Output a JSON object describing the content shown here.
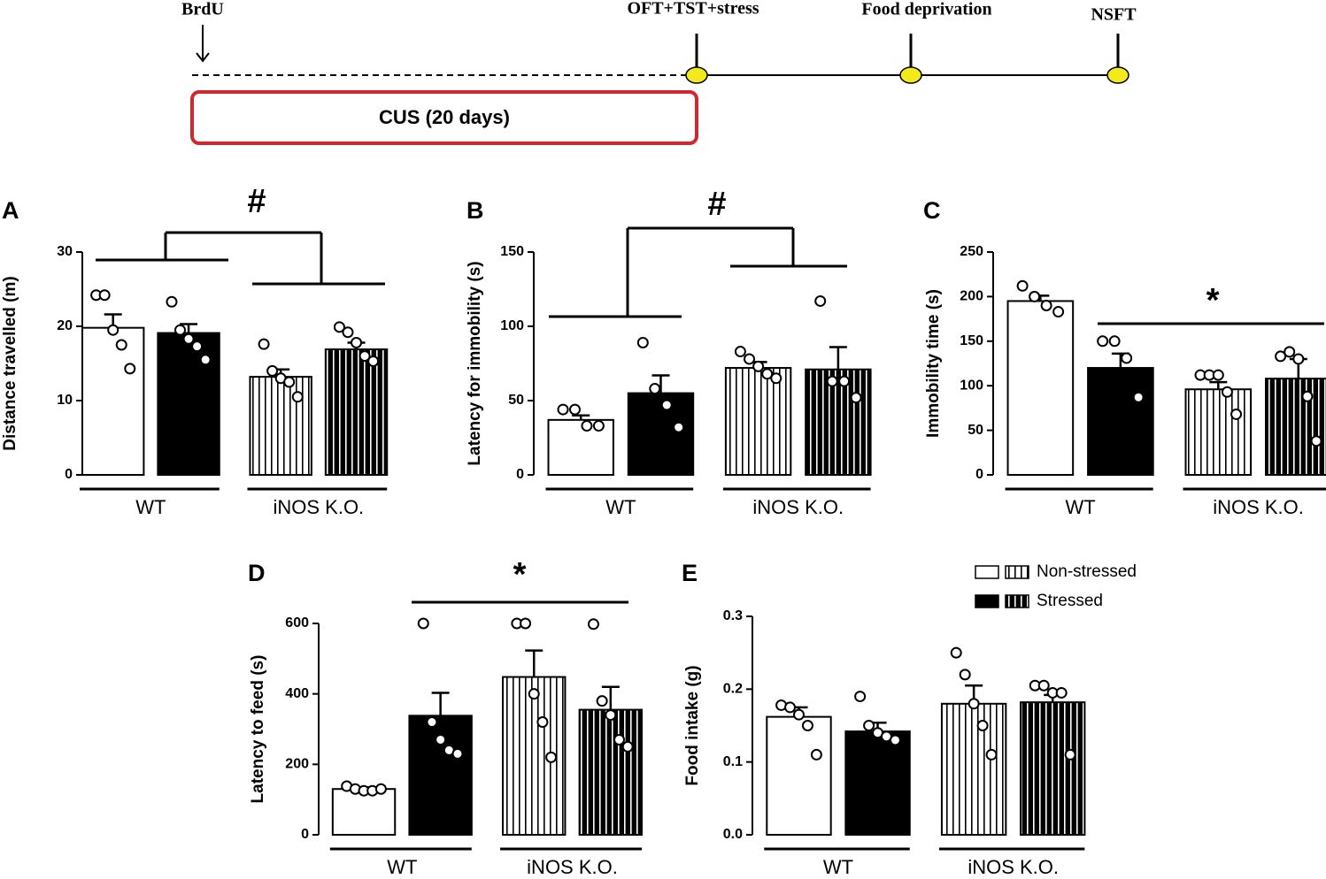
{
  "timeline": {
    "labels": [
      "BrdU",
      "OFT+TST+stress",
      "Food deprivation",
      "NSFT"
    ],
    "period": "CUS (20 days)"
  },
  "chart_data": [
    {
      "type": "bar",
      "panel": "A",
      "ylabel": "Distance travelled (m)",
      "categories": [
        "WT",
        "iNOS K.O."
      ],
      "patterns": [
        "solid",
        "striped"
      ],
      "ylim": [
        0,
        30
      ],
      "yticks": [
        0,
        10,
        20,
        30
      ],
      "annotation": "#",
      "series": [
        {
          "color": "#ffffff",
          "values": [
            19.8,
            13.2
          ],
          "errors": [
            1.8,
            1.0
          ],
          "points": [
            [
              24.2,
              24.2,
              19.5,
              17.5,
              14.3
            ],
            [
              17.6,
              14.0,
              13.0,
              12.5,
              10.5
            ]
          ]
        },
        {
          "color": "#000000",
          "values": [
            19.1,
            16.9
          ],
          "errors": [
            1.2,
            0.9
          ],
          "points": [
            [
              23.3,
              19.5,
              18.3,
              17.3,
              15.5
            ],
            [
              19.9,
              19.2,
              17.8,
              16.0,
              15.3
            ]
          ]
        }
      ]
    },
    {
      "type": "bar",
      "panel": "B",
      "ylabel": "Latency for  immobility (s)",
      "categories": [
        "WT",
        "iNOS K.O."
      ],
      "patterns": [
        "solid",
        "striped"
      ],
      "ylim": [
        0,
        150
      ],
      "yticks": [
        0,
        50,
        100,
        150
      ],
      "annotation": "#",
      "series": [
        {
          "color": "#ffffff",
          "values": [
            37,
            72
          ],
          "errors": [
            3,
            4
          ],
          "points": [
            [
              44,
              44,
              33,
              33
            ],
            [
              83,
              78,
              73,
              68,
              65
            ]
          ]
        },
        {
          "color": "#000000",
          "values": [
            55,
            71
          ],
          "errors": [
            12,
            15
          ],
          "points": [
            [
              89,
              58,
              47,
              32
            ],
            [
              117,
              63,
              63,
              52
            ]
          ]
        }
      ]
    },
    {
      "type": "bar",
      "panel": "C",
      "ylabel": "Immobility time (s)",
      "categories": [
        "WT",
        "iNOS K.O."
      ],
      "patterns": [
        "solid",
        "striped"
      ],
      "ylim": [
        0,
        250
      ],
      "yticks": [
        0,
        50,
        100,
        150,
        200,
        250
      ],
      "annotation": "*",
      "series": [
        {
          "color": "#ffffff",
          "values": [
            195,
            96
          ],
          "errors": [
            6,
            8
          ],
          "points": [
            [
              212,
              200,
              190,
              183
            ],
            [
              112,
              112,
              112,
              93,
              68
            ]
          ]
        },
        {
          "color": "#000000",
          "values": [
            120,
            108
          ],
          "errors": [
            16,
            22
          ],
          "points": [
            [
              150,
              150,
              131,
              87
            ],
            [
              133,
              138,
              130,
              88,
              38
            ]
          ]
        }
      ]
    },
    {
      "type": "bar",
      "panel": "D",
      "ylabel": "Latency to feed (s)",
      "categories": [
        "WT",
        "iNOS K.O."
      ],
      "patterns": [
        "solid",
        "striped"
      ],
      "ylim": [
        0,
        600
      ],
      "yticks": [
        0,
        200,
        400,
        600
      ],
      "annotation": "*",
      "series": [
        {
          "color": "#ffffff",
          "values": [
            130,
            448
          ],
          "errors": [
            5,
            75
          ],
          "points": [
            [
              138,
              130,
              125,
              125,
              130
            ],
            [
              600,
              600,
              400,
              320,
              220
            ]
          ]
        },
        {
          "color": "#000000",
          "values": [
            338,
            355
          ],
          "errors": [
            65,
            65
          ],
          "points": [
            [
              600,
              320,
              270,
              240,
              230
            ],
            [
              598,
              380,
              340,
              270,
              250
            ]
          ]
        }
      ]
    },
    {
      "type": "bar",
      "panel": "E",
      "ylabel": "Food intake (g)",
      "categories": [
        "WT",
        "iNOS K.O."
      ],
      "patterns": [
        "solid",
        "striped"
      ],
      "ylim": [
        0,
        0.3
      ],
      "yticks": [
        {
          "value": 0,
          "label": "0.0"
        },
        0.1,
        0.2,
        0.3
      ],
      "legend": true,
      "series": [
        {
          "name": "Non-stressed",
          "color": "#ffffff",
          "values": [
            0.162,
            0.18
          ],
          "errors": [
            0.013,
            0.025
          ],
          "points": [
            [
              0.178,
              0.175,
              0.165,
              0.15,
              0.11
            ],
            [
              0.25,
              0.22,
              0.18,
              0.15,
              0.11
            ]
          ]
        },
        {
          "name": "Stressed",
          "color": "#000000",
          "values": [
            0.142,
            0.182
          ],
          "errors": [
            0.012,
            0.01
          ],
          "points": [
            [
              0.19,
              0.15,
              0.14,
              0.135,
              0.13
            ],
            [
              0.205,
              0.205,
              0.195,
              0.195,
              0.11
            ]
          ]
        }
      ]
    }
  ]
}
